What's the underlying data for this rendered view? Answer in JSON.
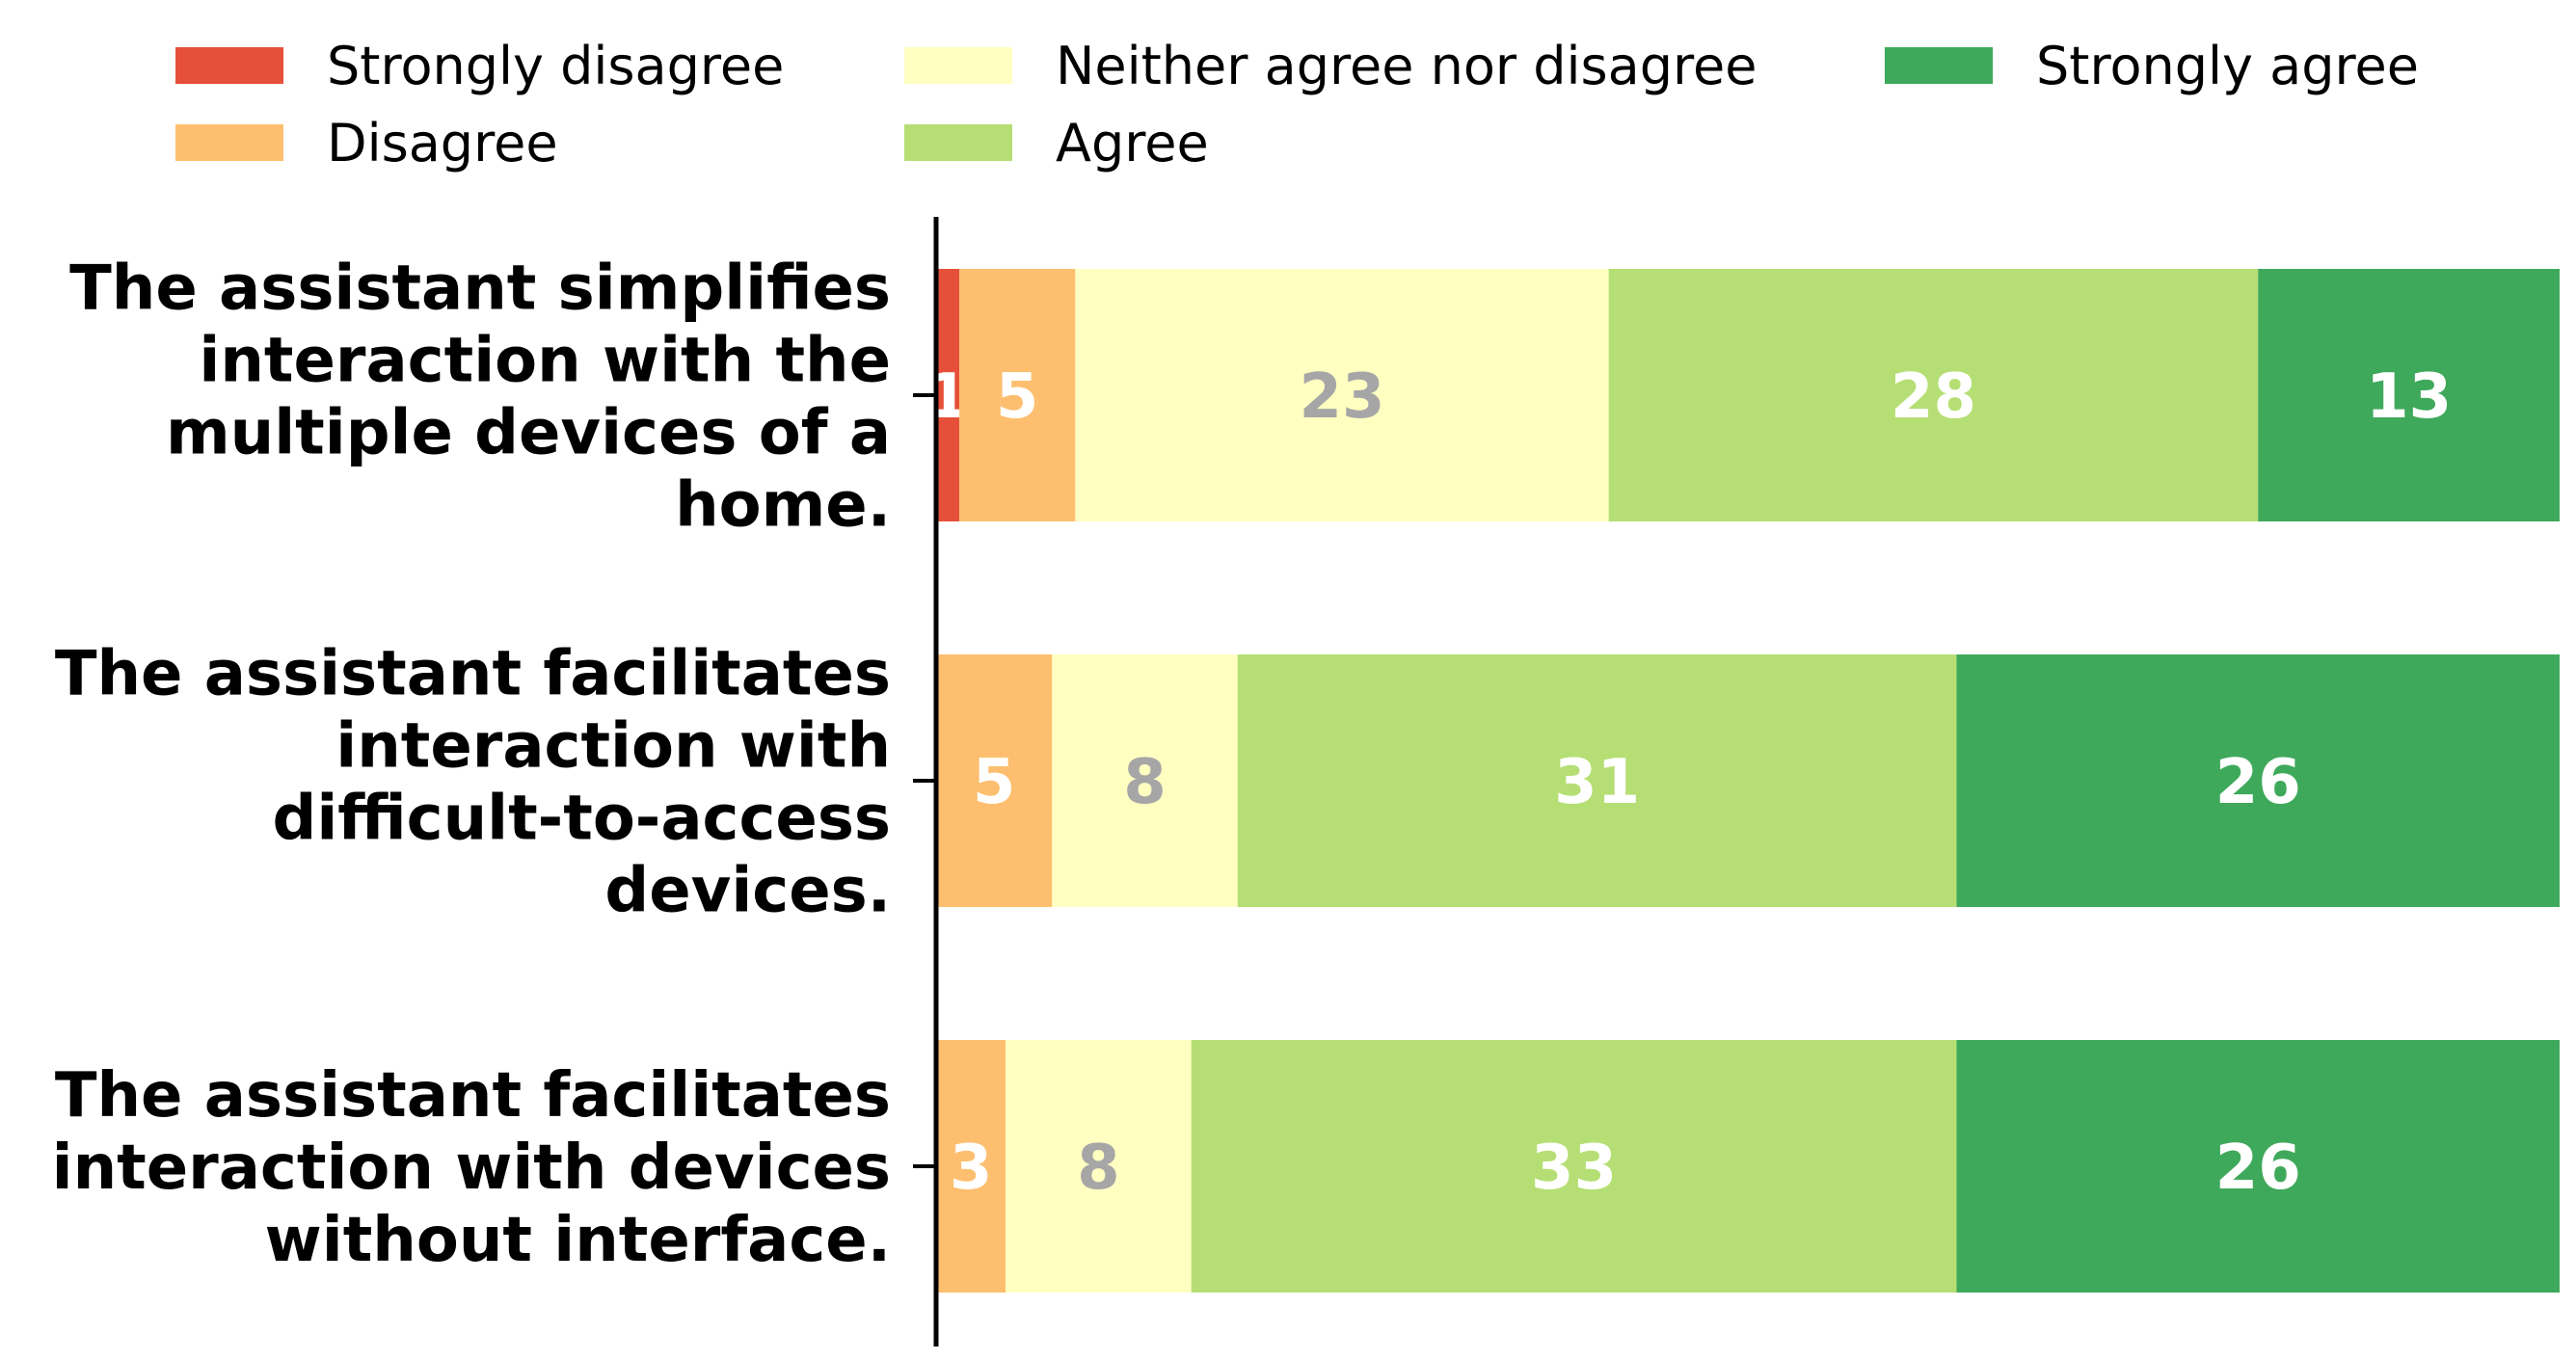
{
  "chart_data": {
    "type": "bar",
    "orientation": "horizontal",
    "stacked": true,
    "title": "",
    "xlabel": "",
    "ylabel": "",
    "legend_position": "top",
    "xlim": [
      0,
      70
    ],
    "categories": [
      [
        "The assistant simplifies",
        "interaction with the",
        "multiple devices of a",
        "home."
      ],
      [
        "The assistant facilitates",
        "interaction with",
        "difficult-to-access",
        "devices."
      ],
      [
        "The assistant facilitates",
        "interaction with devices",
        "without interface."
      ]
    ],
    "series": [
      {
        "name": "Strongly disagree",
        "color": "#e6503a",
        "label_color": "#ffffff",
        "values": [
          1,
          0,
          0
        ]
      },
      {
        "name": "Disagree",
        "color": "#fdbf6f",
        "label_color": "#ffffff",
        "values": [
          5,
          5,
          3
        ]
      },
      {
        "name": "Neither agree nor disagree",
        "color": "#ffffc2",
        "label_color": "#a6a6a6",
        "values": [
          23,
          8,
          8
        ]
      },
      {
        "name": "Agree",
        "color": "#b5df74",
        "label_color": "#ffffff",
        "values": [
          28,
          31,
          33
        ]
      },
      {
        "name": "Strongly agree",
        "color": "#3fa95b",
        "label_color": "#ffffff",
        "values": [
          13,
          26,
          26
        ]
      }
    ]
  }
}
